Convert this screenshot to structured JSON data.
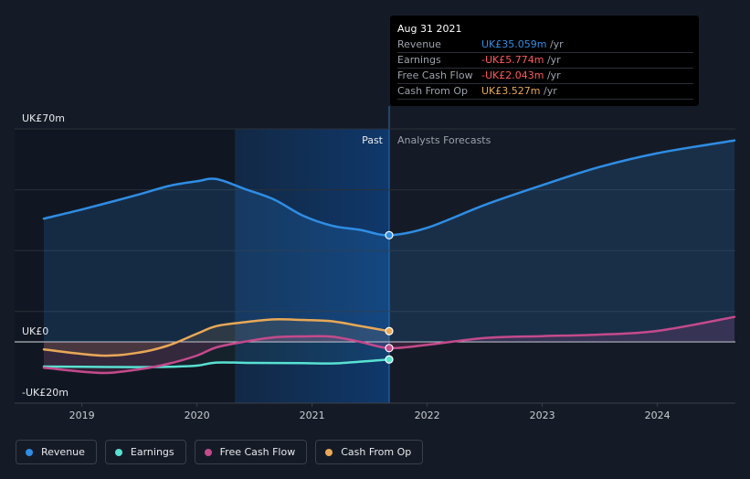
{
  "chart_data": {
    "type": "line",
    "y_unit_labels": {
      "top": "UK£70m",
      "zero": "UK£0",
      "bottom": "-UK£20m"
    },
    "ylim": [
      -20,
      70
    ],
    "x_ticks": [
      "2019",
      "2020",
      "2021",
      "2022",
      "2023",
      "2024"
    ],
    "xlim": [
      2018.65,
      2024.67
    ],
    "past_label": "Past",
    "forecast_label": "Analysts Forecasts",
    "divider_x": 2021.67,
    "series": [
      {
        "name": "Revenue",
        "color": "#2f8de4",
        "points": [
          [
            2018.67,
            40.5
          ],
          [
            2019.0,
            43.5
          ],
          [
            2019.5,
            48.5
          ],
          [
            2019.75,
            51.2
          ],
          [
            2020.0,
            52.8
          ],
          [
            2020.17,
            53.5
          ],
          [
            2020.42,
            50.2
          ],
          [
            2020.67,
            46.8
          ],
          [
            2020.92,
            41.5
          ],
          [
            2021.17,
            38.2
          ],
          [
            2021.42,
            36.8
          ],
          [
            2021.67,
            35.06
          ],
          [
            2022.0,
            37.5
          ],
          [
            2022.5,
            45.0
          ],
          [
            2023.0,
            51.5
          ],
          [
            2023.5,
            57.5
          ],
          [
            2024.0,
            62.0
          ],
          [
            2024.67,
            66.2
          ]
        ]
      },
      {
        "name": "Earnings",
        "color": "#59e1d3",
        "points": [
          [
            2018.67,
            -8.1
          ],
          [
            2019.0,
            -8.2
          ],
          [
            2019.5,
            -8.3
          ],
          [
            2019.75,
            -8.2
          ],
          [
            2020.0,
            -7.8
          ],
          [
            2020.17,
            -6.8
          ],
          [
            2020.5,
            -6.9
          ],
          [
            2020.92,
            -7.0
          ],
          [
            2021.17,
            -7.1
          ],
          [
            2021.42,
            -6.5
          ],
          [
            2021.67,
            -5.774
          ]
        ]
      },
      {
        "name": "Free Cash Flow",
        "color": "#c44a8c",
        "points": [
          [
            2018.67,
            -8.5
          ],
          [
            2019.17,
            -10.2
          ],
          [
            2019.5,
            -9.0
          ],
          [
            2019.75,
            -7.2
          ],
          [
            2020.0,
            -4.5
          ],
          [
            2020.17,
            -1.8
          ],
          [
            2020.42,
            0.1
          ],
          [
            2020.67,
            1.5
          ],
          [
            2020.92,
            1.8
          ],
          [
            2021.17,
            1.7
          ],
          [
            2021.42,
            0.0
          ],
          [
            2021.67,
            -2.043
          ],
          [
            2022.0,
            -1.0
          ],
          [
            2022.5,
            1.3
          ],
          [
            2023.0,
            1.9
          ],
          [
            2023.5,
            2.4
          ],
          [
            2024.0,
            3.6
          ],
          [
            2024.67,
            8.2
          ]
        ]
      },
      {
        "name": "Cash From Op",
        "color": "#e8a857",
        "points": [
          [
            2018.67,
            -2.5
          ],
          [
            2019.17,
            -4.5
          ],
          [
            2019.5,
            -3.5
          ],
          [
            2019.75,
            -1.2
          ],
          [
            2020.0,
            2.7
          ],
          [
            2020.17,
            5.2
          ],
          [
            2020.42,
            6.5
          ],
          [
            2020.67,
            7.4
          ],
          [
            2020.92,
            7.2
          ],
          [
            2021.17,
            6.8
          ],
          [
            2021.42,
            5.2
          ],
          [
            2021.67,
            3.527
          ]
        ]
      }
    ],
    "tooltip": {
      "date": "Aug 31 2021",
      "rows": [
        {
          "label": "Revenue",
          "value": "UK£35.059m",
          "unit": "/yr",
          "color": "#2f8de4"
        },
        {
          "label": "Earnings",
          "value": "-UK£5.774m",
          "unit": "/yr",
          "color": "#ff5a5a"
        },
        {
          "label": "Free Cash Flow",
          "value": "-UK£2.043m",
          "unit": "/yr",
          "color": "#ff5a5a"
        },
        {
          "label": "Cash From Op",
          "value": "UK£3.527m",
          "unit": "/yr",
          "color": "#e8a857"
        }
      ]
    },
    "legend_placement": "bottom-left",
    "grid": true
  },
  "legend": [
    {
      "label": "Revenue",
      "color": "#2f8de4"
    },
    {
      "label": "Earnings",
      "color": "#59e1d3"
    },
    {
      "label": "Free Cash Flow",
      "color": "#c44a8c"
    },
    {
      "label": "Cash From Op",
      "color": "#e8a857"
    }
  ]
}
